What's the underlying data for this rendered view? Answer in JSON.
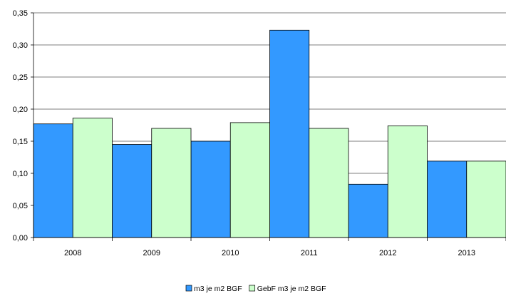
{
  "chart_data": {
    "type": "bar",
    "categories": [
      "2008",
      "2009",
      "2010",
      "2011",
      "2012",
      "2013"
    ],
    "series": [
      {
        "name": "m3 je m2 BGF",
        "values": [
          0.177,
          0.145,
          0.15,
          0.323,
          0.083,
          0.119
        ],
        "color": "#3399ff"
      },
      {
        "name": "GebF m3 je m2 BGF",
        "values": [
          0.186,
          0.17,
          0.179,
          0.17,
          0.174,
          0.119
        ],
        "color": "#ccffcc"
      }
    ],
    "ylim": [
      0,
      0.35
    ],
    "y_ticks": [
      "0,00",
      "0,05",
      "0,10",
      "0,15",
      "0,20",
      "0,25",
      "0,30",
      "0,35"
    ],
    "grid": true,
    "legend_position": "bottom",
    "title": "",
    "xlabel": "",
    "ylabel": ""
  }
}
